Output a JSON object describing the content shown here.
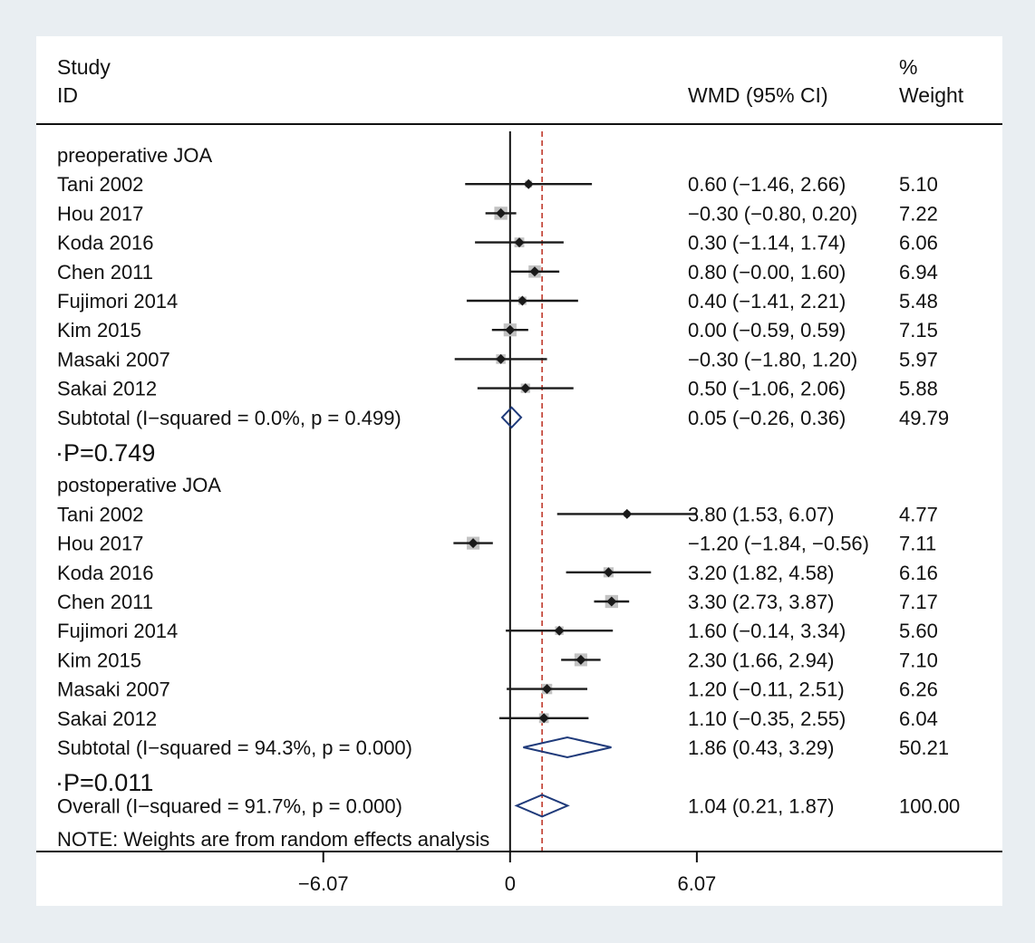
{
  "colors": {
    "background": "#e9eef2",
    "panel": "#ffffff",
    "text": "#111111",
    "ci_line": "#1a1a1a",
    "weight_box": "#c2c2c2",
    "point": "#1a1a1a",
    "diamond": "#1f3a7a",
    "overall_line": "#c0392b"
  },
  "chart_data": {
    "type": "forest",
    "header": {
      "study_col": [
        "Study",
        "ID"
      ],
      "effect_col": "WMD (95% CI)",
      "weight_col": [
        "%",
        "Weight"
      ]
    },
    "x_ticks": [
      -6.07,
      0,
      6.07
    ],
    "x_tick_labels": [
      "−6.07",
      "0",
      "6.07"
    ],
    "xlim": [
      -15.4,
      16.0
    ],
    "null_line": 0,
    "overall_line": 1.04,
    "rows": [
      {
        "kind": "heading",
        "label": "preoperative JOA"
      },
      {
        "kind": "study",
        "label": "Tani 2002",
        "est": 0.6,
        "lo": -1.46,
        "hi": 2.66,
        "ci_text": "0.60 (−1.46, 2.66)",
        "weight": "5.10"
      },
      {
        "kind": "study",
        "label": "Hou 2017",
        "est": -0.3,
        "lo": -0.8,
        "hi": 0.2,
        "ci_text": "−0.30 (−0.80, 0.20)",
        "weight": "7.22"
      },
      {
        "kind": "study",
        "label": "Koda 2016",
        "est": 0.3,
        "lo": -1.14,
        "hi": 1.74,
        "ci_text": "0.30 (−1.14, 1.74)",
        "weight": "6.06"
      },
      {
        "kind": "study",
        "label": "Chen 2011",
        "est": 0.8,
        "lo": -0.0,
        "hi": 1.6,
        "ci_text": "0.80 (−0.00, 1.60)",
        "weight": "6.94"
      },
      {
        "kind": "study",
        "label": "Fujimori 2014",
        "est": 0.4,
        "lo": -1.41,
        "hi": 2.21,
        "ci_text": "0.40 (−1.41, 2.21)",
        "weight": "5.48"
      },
      {
        "kind": "study",
        "label": "Kim 2015",
        "est": 0.0,
        "lo": -0.59,
        "hi": 0.59,
        "ci_text": "0.00 (−0.59, 0.59)",
        "weight": "7.15"
      },
      {
        "kind": "study",
        "label": "Masaki 2007",
        "est": -0.3,
        "lo": -1.8,
        "hi": 1.2,
        "ci_text": "−0.30 (−1.80, 1.20)",
        "weight": "5.97"
      },
      {
        "kind": "study",
        "label": "Sakai 2012",
        "est": 0.5,
        "lo": -1.06,
        "hi": 2.06,
        "ci_text": "0.50 (−1.06, 2.06)",
        "weight": "5.88"
      },
      {
        "kind": "subtotal",
        "label": "Subtotal  (I−squared = 0.0%, p = 0.499)",
        "est": 0.05,
        "lo": -0.26,
        "hi": 0.36,
        "ci_text": "0.05 (−0.26, 0.36)",
        "weight": "49.79"
      },
      {
        "kind": "pvalue",
        "label": "·P=0.749"
      },
      {
        "kind": "heading",
        "label": "postoperative JOA"
      },
      {
        "kind": "study",
        "label": "Tani 2002",
        "est": 3.8,
        "lo": 1.53,
        "hi": 6.07,
        "ci_text": "3.80 (1.53, 6.07)",
        "weight": "4.77"
      },
      {
        "kind": "study",
        "label": "Hou 2017",
        "est": -1.2,
        "lo": -1.84,
        "hi": -0.56,
        "ci_text": "−1.20 (−1.84, −0.56)",
        "weight": "7.11"
      },
      {
        "kind": "study",
        "label": "Koda 2016",
        "est": 3.2,
        "lo": 1.82,
        "hi": 4.58,
        "ci_text": "3.20 (1.82, 4.58)",
        "weight": "6.16"
      },
      {
        "kind": "study",
        "label": "Chen 2011",
        "est": 3.3,
        "lo": 2.73,
        "hi": 3.87,
        "ci_text": "3.30 (2.73, 3.87)",
        "weight": "7.17"
      },
      {
        "kind": "study",
        "label": "Fujimori 2014",
        "est": 1.6,
        "lo": -0.14,
        "hi": 3.34,
        "ci_text": "1.60 (−0.14, 3.34)",
        "weight": "5.60"
      },
      {
        "kind": "study",
        "label": "Kim 2015",
        "est": 2.3,
        "lo": 1.66,
        "hi": 2.94,
        "ci_text": "2.30 (1.66, 2.94)",
        "weight": "7.10"
      },
      {
        "kind": "study",
        "label": "Masaki 2007",
        "est": 1.2,
        "lo": -0.11,
        "hi": 2.51,
        "ci_text": "1.20 (−0.11, 2.51)",
        "weight": "6.26"
      },
      {
        "kind": "study",
        "label": "Sakai 2012",
        "est": 1.1,
        "lo": -0.35,
        "hi": 2.55,
        "ci_text": "1.10 (−0.35, 2.55)",
        "weight": "6.04"
      },
      {
        "kind": "subtotal",
        "label": "Subtotal  (I−squared = 94.3%, p = 0.000)",
        "est": 1.86,
        "lo": 0.43,
        "hi": 3.29,
        "ci_text": "1.86 (0.43, 3.29)",
        "weight": "50.21"
      },
      {
        "kind": "pvalue",
        "label": "·P=0.011"
      },
      {
        "kind": "overall",
        "label": "Overall  (I−squared = 91.7%, p = 0.000)",
        "est": 1.04,
        "lo": 0.21,
        "hi": 1.87,
        "ci_text": "1.04 (0.21, 1.87)",
        "weight": "100.00"
      }
    ],
    "note": "NOTE: Weights are from random effects analysis"
  }
}
